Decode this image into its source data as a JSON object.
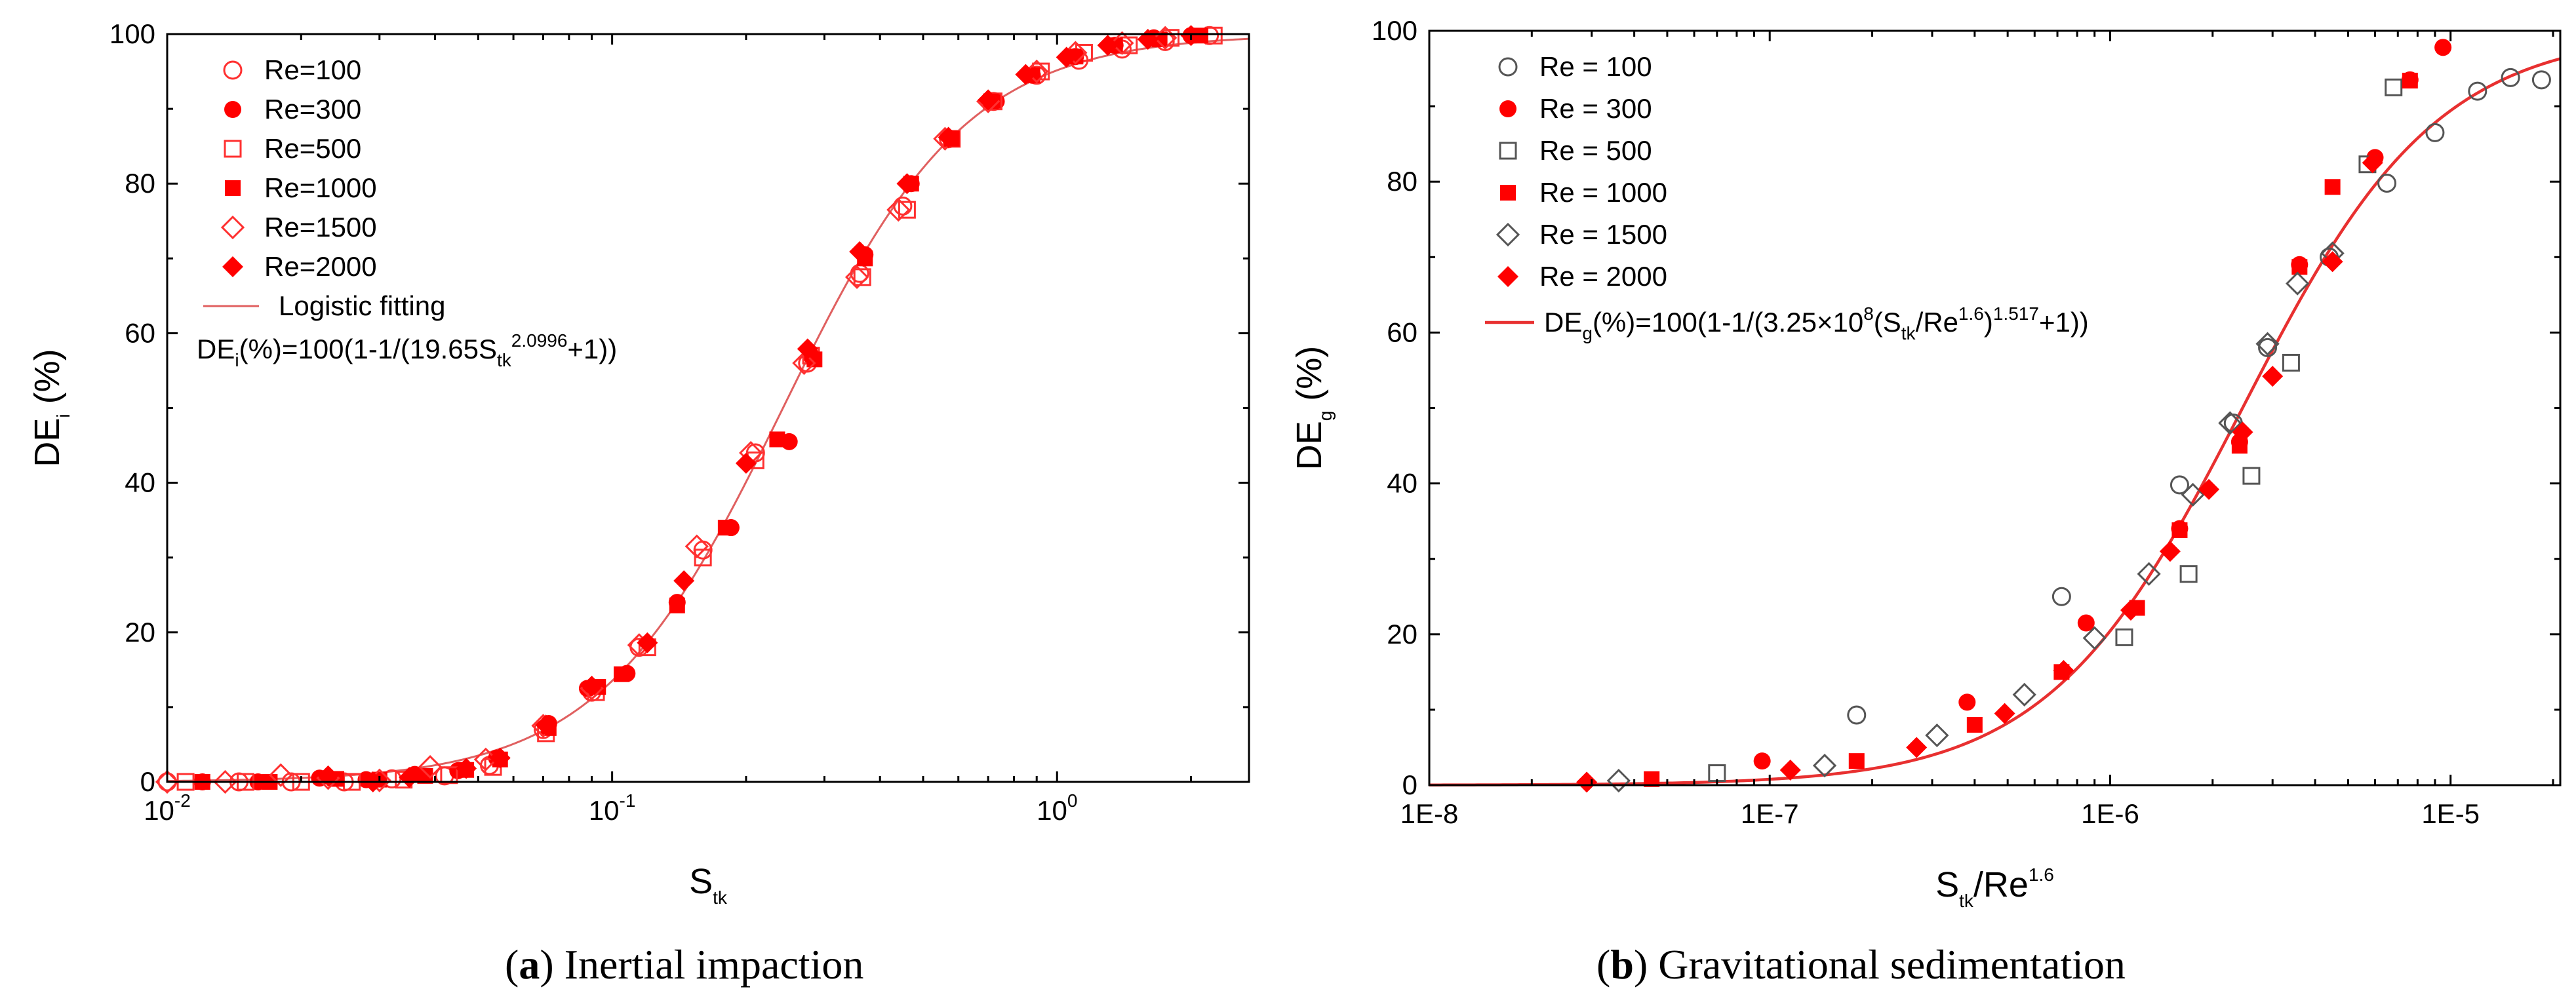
{
  "chart_data": [
    {
      "type": "scatter",
      "panel": "a",
      "caption_label": "a",
      "caption_text": "Inertial impaction",
      "xscale": "log",
      "xlim": [
        0.01,
        2.7
      ],
      "ylim": [
        0,
        100
      ],
      "xticks": [
        {
          "value": 0.01,
          "base": "10",
          "exp": "-2"
        },
        {
          "value": 0.1,
          "base": "10",
          "exp": "-1"
        },
        {
          "value": 1,
          "base": "10",
          "exp": "0"
        }
      ],
      "yticks": [
        0,
        20,
        40,
        60,
        80,
        100
      ],
      "xlabel": {
        "main": "S",
        "sub": "tk"
      },
      "ylabel": {
        "main": "DE",
        "sub": "i",
        "rest": " (%)"
      },
      "fit": {
        "label": "Logistic fitting",
        "equation": {
          "p1": "DE",
          "sub1": "i",
          "p2": "(%)=100(1-1/(19.65S",
          "sub2": "tk",
          "sup": "2.0996",
          "p3": "+1))"
        },
        "a": 19.65,
        "b": 2.0996,
        "color": "#e06060"
      },
      "series": [
        {
          "name": "Re=100",
          "marker": "circle-open",
          "color": "#ff3030",
          "points": [
            [
              0.01,
              0.0
            ],
            [
              0.0145,
              0.0
            ],
            [
              0.019,
              0.0
            ],
            [
              0.025,
              0.0
            ],
            [
              0.032,
              0.4
            ],
            [
              0.042,
              0.8
            ],
            [
              0.053,
              2.2
            ],
            [
              0.07,
              7.0
            ],
            [
              0.09,
              12.0
            ],
            [
              0.115,
              18.0
            ],
            [
              0.16,
              31.0
            ],
            [
              0.21,
              44.0
            ],
            [
              0.275,
              56.0
            ],
            [
              0.36,
              68.0
            ],
            [
              0.45,
              77.0
            ],
            [
              0.57,
              86.0
            ],
            [
              0.72,
              91.0
            ],
            [
              0.9,
              94.5
            ],
            [
              1.12,
              96.5
            ],
            [
              1.4,
              98.0
            ],
            [
              1.75,
              99.0
            ],
            [
              2.2,
              99.8
            ]
          ]
        },
        {
          "name": "Re=300",
          "marker": "circle-filled",
          "color": "#ff0000",
          "points": [
            [
              0.012,
              0.0
            ],
            [
              0.016,
              0.0
            ],
            [
              0.022,
              0.5
            ],
            [
              0.028,
              0.3
            ],
            [
              0.036,
              1.0
            ],
            [
              0.045,
              1.5
            ],
            [
              0.055,
              3.2
            ],
            [
              0.072,
              7.8
            ],
            [
              0.088,
              12.5
            ],
            [
              0.108,
              14.5
            ],
            [
              0.14,
              24.0
            ],
            [
              0.185,
              34.0
            ],
            [
              0.25,
              45.5
            ],
            [
              0.28,
              57.0
            ],
            [
              0.37,
              70.5
            ],
            [
              0.47,
              80.0
            ],
            [
              0.58,
              86.0
            ],
            [
              0.73,
              91.0
            ],
            [
              0.88,
              94.5
            ],
            [
              1.1,
              97.0
            ],
            [
              1.35,
              98.5
            ],
            [
              1.65,
              99.5
            ],
            [
              2.0,
              99.8
            ]
          ]
        },
        {
          "name": "Re=500",
          "marker": "square-open",
          "color": "#ff3030",
          "points": [
            [
              0.011,
              0.0
            ],
            [
              0.015,
              0.0
            ],
            [
              0.02,
              0.0
            ],
            [
              0.026,
              0.0
            ],
            [
              0.034,
              0.3
            ],
            [
              0.043,
              0.9
            ],
            [
              0.054,
              2.0
            ],
            [
              0.071,
              6.5
            ],
            [
              0.092,
              12.0
            ],
            [
              0.12,
              18.0
            ],
            [
              0.16,
              30.0
            ],
            [
              0.21,
              43.0
            ],
            [
              0.28,
              57.0
            ],
            [
              0.365,
              67.5
            ],
            [
              0.46,
              76.5
            ],
            [
              0.58,
              86.0
            ],
            [
              0.72,
              91.0
            ],
            [
              0.92,
              95.0
            ],
            [
              1.15,
              97.5
            ],
            [
              1.45,
              98.5
            ],
            [
              1.8,
              99.5
            ],
            [
              2.25,
              99.8
            ]
          ]
        },
        {
          "name": "Re=1000",
          "marker": "square-filled",
          "color": "#ff0000",
          "points": [
            [
              0.012,
              0.0
            ],
            [
              0.017,
              0.0
            ],
            [
              0.024,
              0.4
            ],
            [
              0.03,
              0.3
            ],
            [
              0.038,
              0.8
            ],
            [
              0.047,
              1.6
            ],
            [
              0.056,
              3.0
            ],
            [
              0.072,
              7.2
            ],
            [
              0.093,
              12.7
            ],
            [
              0.105,
              14.4
            ],
            [
              0.14,
              23.6
            ],
            [
              0.18,
              34.0
            ],
            [
              0.235,
              45.8
            ],
            [
              0.285,
              56.5
            ],
            [
              0.37,
              70.0
            ],
            [
              0.47,
              80.0
            ],
            [
              0.58,
              86.0
            ],
            [
              0.71,
              91.0
            ],
            [
              0.88,
              94.5
            ],
            [
              1.1,
              97.0
            ],
            [
              1.35,
              98.5
            ],
            [
              1.7,
              99.3
            ],
            [
              2.1,
              99.8
            ]
          ]
        },
        {
          "name": "Re=1500",
          "marker": "diamond-open",
          "color": "#ff3030",
          "points": [
            [
              0.01,
              0.0
            ],
            [
              0.0135,
              0.0
            ],
            [
              0.018,
              0.9
            ],
            [
              0.023,
              0.5
            ],
            [
              0.03,
              0.2
            ],
            [
              0.039,
              2.0
            ],
            [
              0.052,
              3.0
            ],
            [
              0.07,
              7.5
            ],
            [
              0.09,
              12.5
            ],
            [
              0.115,
              18.3
            ],
            [
              0.155,
              31.5
            ],
            [
              0.205,
              44.0
            ],
            [
              0.27,
              56.0
            ],
            [
              0.355,
              67.5
            ],
            [
              0.44,
              76.5
            ],
            [
              0.56,
              86.0
            ],
            [
              0.7,
              91.0
            ],
            [
              0.9,
              95.0
            ],
            [
              1.1,
              97.5
            ],
            [
              1.4,
              98.8
            ],
            [
              1.75,
              99.5
            ]
          ]
        },
        {
          "name": "Re=2000",
          "marker": "diamond-filled",
          "color": "#ff0000",
          "points": [
            [
              0.023,
              0.8
            ],
            [
              0.029,
              0.0
            ],
            [
              0.035,
              0.6
            ],
            [
              0.047,
              1.8
            ],
            [
              0.056,
              3.2
            ],
            [
              0.071,
              7.6
            ],
            [
              0.09,
              12.8
            ],
            [
              0.12,
              18.6
            ],
            [
              0.145,
              26.9
            ],
            [
              0.2,
              42.6
            ],
            [
              0.275,
              57.9
            ],
            [
              0.36,
              70.9
            ],
            [
              0.46,
              80.0
            ],
            [
              0.57,
              86.2
            ],
            [
              0.7,
              91.2
            ],
            [
              0.85,
              94.6
            ],
            [
              1.05,
              96.9
            ],
            [
              1.3,
              98.5
            ],
            [
              1.6,
              99.3
            ],
            [
              2.0,
              99.8
            ]
          ]
        }
      ]
    },
    {
      "type": "scatter",
      "panel": "b",
      "caption_label": "b",
      "caption_text": "Gravitational sedimentation",
      "xscale": "log",
      "xlim": [
        1e-08,
        2.1e-05
      ],
      "ylim": [
        0,
        100
      ],
      "xticks": [
        {
          "value": 1e-08,
          "label": "1E-8"
        },
        {
          "value": 1e-07,
          "label": "1E-7"
        },
        {
          "value": 1e-06,
          "label": "1E-6"
        },
        {
          "value": 1e-05,
          "label": "1E-5"
        }
      ],
      "yticks": [
        0,
        20,
        40,
        60,
        80,
        100
      ],
      "xlabel": {
        "main": "S",
        "sub": "tk",
        "rest": "/Re",
        "sup": "1.6"
      },
      "ylabel": {
        "main": "DE",
        "sub": "g",
        "rest": " (%)"
      },
      "fit": {
        "equation": {
          "p1": "DE",
          "sub1": "g",
          "p2": "(%)=100(1-1/(3.25×10",
          "sup1": "8",
          "p3": "(S",
          "sub2": "tk",
          "p4": "/Re",
          "sup2": "1.6",
          "p5": ")",
          "sup3": "1.517",
          "p6": "+1))"
        },
        "a": 325000000.0,
        "b": 1.517,
        "color": "#e83030"
      },
      "series": [
        {
          "name": "Re = 100",
          "marker": "circle-open",
          "color": "#555555",
          "points": [
            [
              1.8e-07,
              9.3
            ],
            [
              7.2e-07,
              25.0
            ],
            [
              1.6e-06,
              39.8
            ],
            [
              2.3e-06,
              48.0
            ],
            [
              2.9e-06,
              58.0
            ],
            [
              4.4e-06,
              70.0
            ],
            [
              6.5e-06,
              79.8
            ],
            [
              9e-06,
              86.5
            ],
            [
              1.2e-05,
              92.0
            ],
            [
              1.5e-05,
              93.8
            ],
            [
              1.85e-05,
              93.5
            ]
          ]
        },
        {
          "name": "Re = 300",
          "marker": "circle-filled",
          "color": "#ff0000",
          "points": [
            [
              9.5e-08,
              3.2
            ],
            [
              3.8e-07,
              11.0
            ],
            [
              8.5e-07,
              21.5
            ],
            [
              1.6e-06,
              34.0
            ],
            [
              2.4e-06,
              45.5
            ],
            [
              3.6e-06,
              69.0
            ],
            [
              6e-06,
              83.2
            ],
            [
              7.6e-06,
              93.5
            ],
            [
              9.5e-06,
              97.8
            ]
          ]
        },
        {
          "name": "Re = 500",
          "marker": "square-open",
          "color": "#555555",
          "points": [
            [
              7e-08,
              1.6
            ],
            [
              1.1e-06,
              19.6
            ],
            [
              1.7e-06,
              28.0
            ],
            [
              2.6e-06,
              41.0
            ],
            [
              3.4e-06,
              56.0
            ],
            [
              5.7e-06,
              82.3
            ],
            [
              6.8e-06,
              92.5
            ]
          ]
        },
        {
          "name": "Re = 1000",
          "marker": "square-filled",
          "color": "#ff0000",
          "points": [
            [
              4.5e-08,
              0.8
            ],
            [
              1.8e-07,
              3.2
            ],
            [
              4e-07,
              8.0
            ],
            [
              7.2e-07,
              15.0
            ],
            [
              1.2e-06,
              23.5
            ],
            [
              1.6e-06,
              33.8
            ],
            [
              2.4e-06,
              45.0
            ],
            [
              3.6e-06,
              68.7
            ],
            [
              4.5e-06,
              79.3
            ],
            [
              7.6e-06,
              93.4
            ]
          ]
        },
        {
          "name": "Re = 1500",
          "marker": "diamond-open",
          "color": "#555555",
          "points": [
            [
              3.6e-08,
              0.6
            ],
            [
              1.45e-07,
              2.6
            ],
            [
              3.1e-07,
              6.6
            ],
            [
              5.6e-07,
              12.0
            ],
            [
              9e-07,
              19.5
            ],
            [
              1.3e-06,
              28.0
            ],
            [
              1.75e-06,
              38.5
            ],
            [
              2.25e-06,
              48.0
            ],
            [
              2.9e-06,
              58.5
            ],
            [
              3.55e-06,
              66.5
            ],
            [
              4.5e-06,
              70.5
            ]
          ]
        },
        {
          "name": "Re = 2000",
          "marker": "diamond-filled",
          "color": "#ff0000",
          "points": [
            [
              2.9e-08,
              0.4
            ],
            [
              1.15e-07,
              2.0
            ],
            [
              2.7e-07,
              5.0
            ],
            [
              4.9e-07,
              9.5
            ],
            [
              7.3e-07,
              15.2
            ],
            [
              1.15e-06,
              23.2
            ],
            [
              1.5e-06,
              31.0
            ],
            [
              1.95e-06,
              39.2
            ],
            [
              2.45e-06,
              46.8
            ],
            [
              3e-06,
              54.2
            ],
            [
              4.5e-06,
              69.4
            ],
            [
              5.9e-06,
              82.5
            ]
          ]
        }
      ]
    }
  ]
}
